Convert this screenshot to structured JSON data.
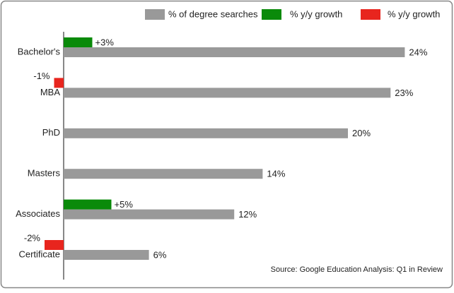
{
  "chart_data": {
    "type": "bar",
    "categories": [
      "Bachelor's",
      "MBA",
      "PhD",
      "Masters",
      "Associates",
      "Certificate"
    ],
    "series": [
      {
        "name": "% of degree searches",
        "color": "#999999",
        "values": [
          24,
          23,
          20,
          14,
          12,
          6
        ],
        "value_labels": [
          "24%",
          "23%",
          "20%",
          "14%",
          "12%",
          "6%"
        ]
      },
      {
        "name": "% y/y growth",
        "color": "#0a8a0a",
        "values": [
          3,
          null,
          null,
          null,
          5,
          null
        ],
        "value_labels": [
          "+3%",
          null,
          null,
          null,
          "+5%",
          null
        ]
      },
      {
        "name": "% y/y growth",
        "color": "#e8251e",
        "values": [
          null,
          -1,
          null,
          null,
          null,
          -2
        ],
        "value_labels": [
          null,
          "-1%",
          null,
          null,
          null,
          "-2%"
        ]
      }
    ],
    "source": "Source:  Google Education Analysis: Q1 in Review"
  }
}
